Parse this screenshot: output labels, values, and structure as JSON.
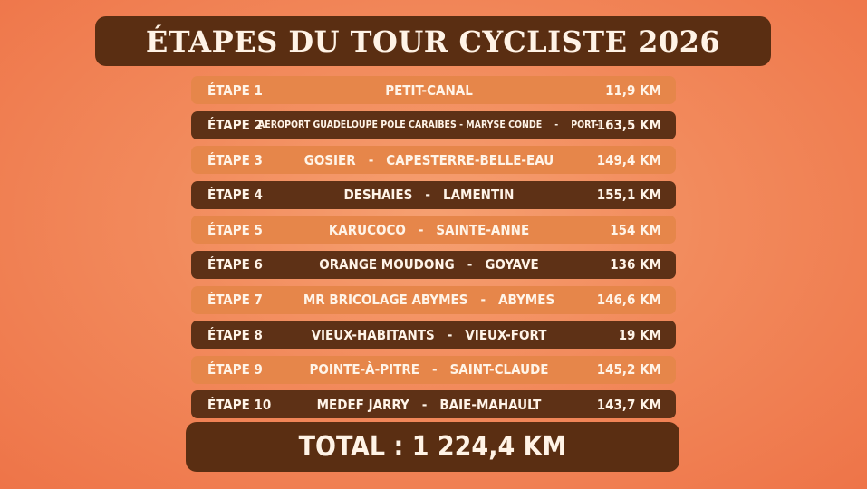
{
  "title": "ÉTAPES DU TOUR CYCLISTE 2026",
  "stages": [
    {
      "stage": "ÉTAPE 1",
      "from": "PETIT-CANAL",
      "to": "",
      "distance": "11,9 KM",
      "tone": "light"
    },
    {
      "stage": "ÉTAPE 2",
      "from": "AÉROPORT GUADELOUPE PÔLE CARAÏBES - MARYSE CONDÉ",
      "to": "PORT-LOUIS",
      "distance": "163,5 KM",
      "tone": "dark"
    },
    {
      "stage": "ÉTAPE 3",
      "from": "GOSIER",
      "to": "CAPESTERRE-BELLE-EAU",
      "distance": "149,4 KM",
      "tone": "light"
    },
    {
      "stage": "ÉTAPE 4",
      "from": "DESHAIES",
      "to": "LAMENTIN",
      "distance": "155,1 KM",
      "tone": "dark"
    },
    {
      "stage": "ÉTAPE 5",
      "from": "KARUCOCO",
      "to": "SAINTE-ANNE",
      "distance": "154 KM",
      "tone": "light"
    },
    {
      "stage": "ÉTAPE 6",
      "from": "ORANGE MOUDONG",
      "to": "GOYAVE",
      "distance": "136 KM",
      "tone": "dark"
    },
    {
      "stage": "ÉTAPE 7",
      "from": "MR BRICOLAGE ABYMES",
      "to": "ABYMES",
      "distance": "146,6 KM",
      "tone": "light"
    },
    {
      "stage": "ÉTAPE 8",
      "from": "VIEUX-HABITANTS",
      "to": "VIEUX-FORT",
      "distance": "19 KM",
      "tone": "dark"
    },
    {
      "stage": "ÉTAPE 9",
      "from": "POINTE-À-PITRE",
      "to": "SAINT-CLAUDE",
      "distance": "145,2 KM",
      "tone": "light"
    },
    {
      "stage": "ÉTAPE 10",
      "from": "MEDEF JARRY",
      "to": "BAIE-MAHAULT",
      "distance": "143,7 KM",
      "tone": "dark"
    }
  ],
  "total": "TOTAL : 1 224,4 KM",
  "colors": {
    "dark": "#5e3116",
    "light": "#e6864a",
    "text": "#fff4e8"
  }
}
